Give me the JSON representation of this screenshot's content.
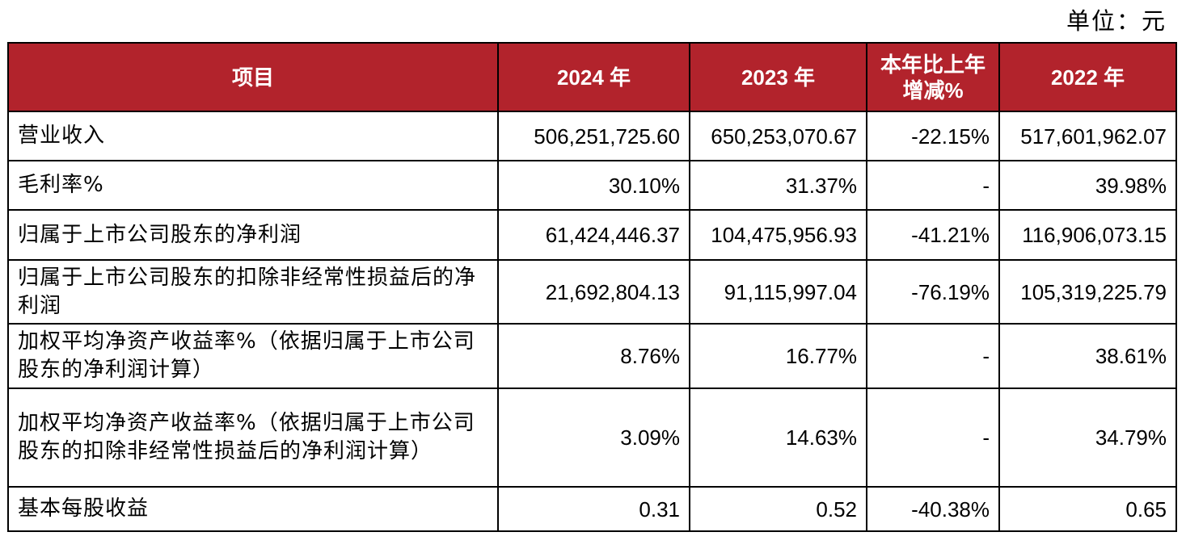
{
  "unit": "单位：元",
  "headers": [
    "项目",
    "2024 年",
    "2023 年",
    "本年比上年增减%",
    "2022 年"
  ],
  "rows": [
    {
      "item": "营业收入",
      "y2024": "506,251,725.60",
      "y2023": "650,253,070.67",
      "change": "-22.15%",
      "y2022": "517,601,962.07"
    },
    {
      "item": "毛利率%",
      "y2024": "30.10%",
      "y2023": "31.37%",
      "change": "-",
      "y2022": "39.98%"
    },
    {
      "item": "归属于上市公司股东的净利润",
      "y2024": "61,424,446.37",
      "y2023": "104,475,956.93",
      "change": "-41.21%",
      "y2022": "116,906,073.15"
    },
    {
      "item": "归属于上市公司股东的扣除非经常性损益后的净利润",
      "y2024": "21,692,804.13",
      "y2023": "91,115,997.04",
      "change": "-76.19%",
      "y2022": "105,319,225.79"
    },
    {
      "item": "加权平均净资产收益率%（依据归属于上市公司股东的净利润计算）",
      "y2024": "8.76%",
      "y2023": "16.77%",
      "change": "-",
      "y2022": "38.61%"
    },
    {
      "item": "加权平均净资产收益率%（依据归属于上市公司股东的扣除非经常性损益后的净利润计算）",
      "y2024": "3.09%",
      "y2023": "14.63%",
      "change": "-",
      "y2022": "34.79%"
    },
    {
      "item": "基本每股收益",
      "y2024": "0.31",
      "y2023": "0.52",
      "change": "-40.38%",
      "y2022": "0.65"
    }
  ],
  "colors": {
    "header_bg": "#b2232c",
    "header_text": "#ffffff",
    "border": "#000000"
  }
}
